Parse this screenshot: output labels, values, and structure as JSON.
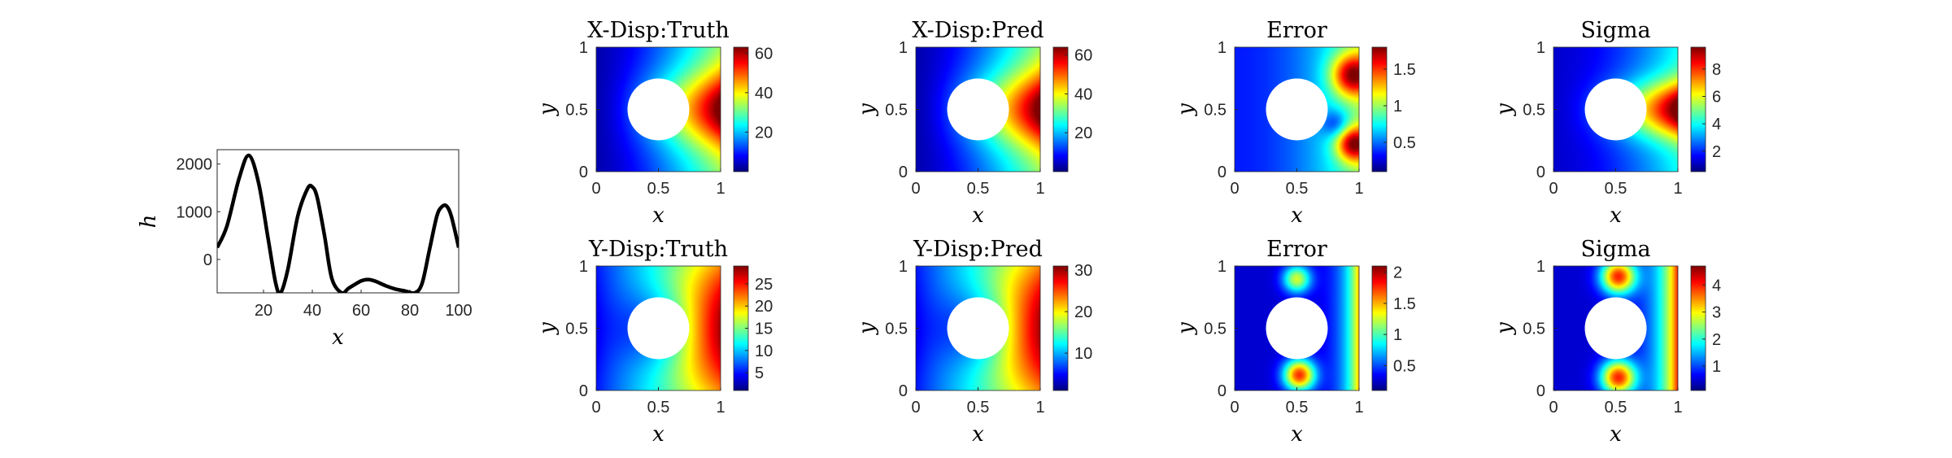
{
  "chart_data": [
    {
      "type": "line",
      "xlabel": "x",
      "ylabel": "h",
      "xlim": [
        1,
        100
      ],
      "ylim": [
        -700,
        2300
      ],
      "xticks": [
        "20",
        "40",
        "60",
        "80",
        "100"
      ],
      "yticks": [
        "0",
        "1000",
        "2000"
      ],
      "line_color": "#000000",
      "grid": false,
      "x": [
        1,
        5,
        10,
        14,
        18,
        22,
        25,
        27,
        30,
        34,
        38,
        40,
        42,
        45,
        48,
        52,
        55,
        60,
        63,
        66,
        70,
        74,
        78,
        82,
        85,
        88,
        91,
        93,
        95,
        97,
        100
      ],
      "y": [
        250,
        700,
        1700,
        2180,
        1600,
        400,
        -500,
        -700,
        -200,
        900,
        1480,
        1520,
        1300,
        500,
        -400,
        -700,
        -600,
        -450,
        -420,
        -460,
        -550,
        -620,
        -660,
        -700,
        -500,
        200,
        900,
        1100,
        1120,
        900,
        250
      ]
    },
    {
      "type": "heatmap",
      "title": "X-Disp:Truth",
      "xlabel": "x",
      "ylabel": "y",
      "xticks": [
        "0",
        "0.5",
        "1"
      ],
      "yticks": [
        "0",
        "0.5",
        "1"
      ],
      "colormap": "jet",
      "clim": [
        0,
        63
      ],
      "colorbar_ticks": [
        "20",
        "40",
        "60"
      ],
      "field": "xdisp"
    },
    {
      "type": "heatmap",
      "title": "X-Disp:Pred",
      "xlabel": "x",
      "ylabel": "y",
      "xticks": [
        "0",
        "0.5",
        "1"
      ],
      "yticks": [
        "0",
        "0.5",
        "1"
      ],
      "colormap": "jet",
      "clim": [
        0,
        64
      ],
      "colorbar_ticks": [
        "20",
        "40",
        "60"
      ],
      "field": "xdisp"
    },
    {
      "type": "heatmap",
      "title": "Error",
      "xlabel": "x",
      "ylabel": "y",
      "xticks": [
        "0",
        "0.5",
        "1"
      ],
      "yticks": [
        "0",
        "0.5",
        "1"
      ],
      "colormap": "jet",
      "clim": [
        0.1,
        1.8
      ],
      "colorbar_ticks": [
        "0.5",
        "1",
        "1.5"
      ],
      "field": "xerr"
    },
    {
      "type": "heatmap",
      "title": "Sigma",
      "xlabel": "x",
      "ylabel": "y",
      "xticks": [
        "0",
        "0.5",
        "1"
      ],
      "yticks": [
        "0",
        "0.5",
        "1"
      ],
      "colormap": "jet",
      "clim": [
        0.5,
        9.6
      ],
      "colorbar_ticks": [
        "2",
        "4",
        "6",
        "8"
      ],
      "field": "xsig"
    },
    {
      "type": "heatmap",
      "title": "Y-Disp:Truth",
      "xlabel": "x",
      "ylabel": "y",
      "xticks": [
        "0",
        "0.5",
        "1"
      ],
      "yticks": [
        "0",
        "0.5",
        "1"
      ],
      "colormap": "jet",
      "clim": [
        1,
        29
      ],
      "colorbar_ticks": [
        "5",
        "10",
        "15",
        "20",
        "25"
      ],
      "field": "ydisp"
    },
    {
      "type": "heatmap",
      "title": "Y-Disp:Pred",
      "xlabel": "x",
      "ylabel": "y",
      "xticks": [
        "0",
        "0.5",
        "1"
      ],
      "yticks": [
        "0",
        "0.5",
        "1"
      ],
      "colormap": "jet",
      "clim": [
        1,
        31
      ],
      "colorbar_ticks": [
        "10",
        "20",
        "30"
      ],
      "field": "ydisp"
    },
    {
      "type": "heatmap",
      "title": "Error",
      "xlabel": "x",
      "ylabel": "y",
      "xticks": [
        "0",
        "0.5",
        "1"
      ],
      "yticks": [
        "0",
        "0.5",
        "1"
      ],
      "colormap": "jet",
      "clim": [
        0.1,
        2.1
      ],
      "colorbar_ticks": [
        "0.5",
        "1",
        "1.5",
        "2"
      ],
      "field": "yerr"
    },
    {
      "type": "heatmap",
      "title": "Sigma",
      "xlabel": "x",
      "ylabel": "y",
      "xticks": [
        "0",
        "0.5",
        "1"
      ],
      "yticks": [
        "0",
        "0.5",
        "1"
      ],
      "colormap": "jet",
      "clim": [
        0.1,
        4.7
      ],
      "colorbar_ticks": [
        "1",
        "2",
        "3",
        "4"
      ],
      "field": "ysig"
    }
  ]
}
